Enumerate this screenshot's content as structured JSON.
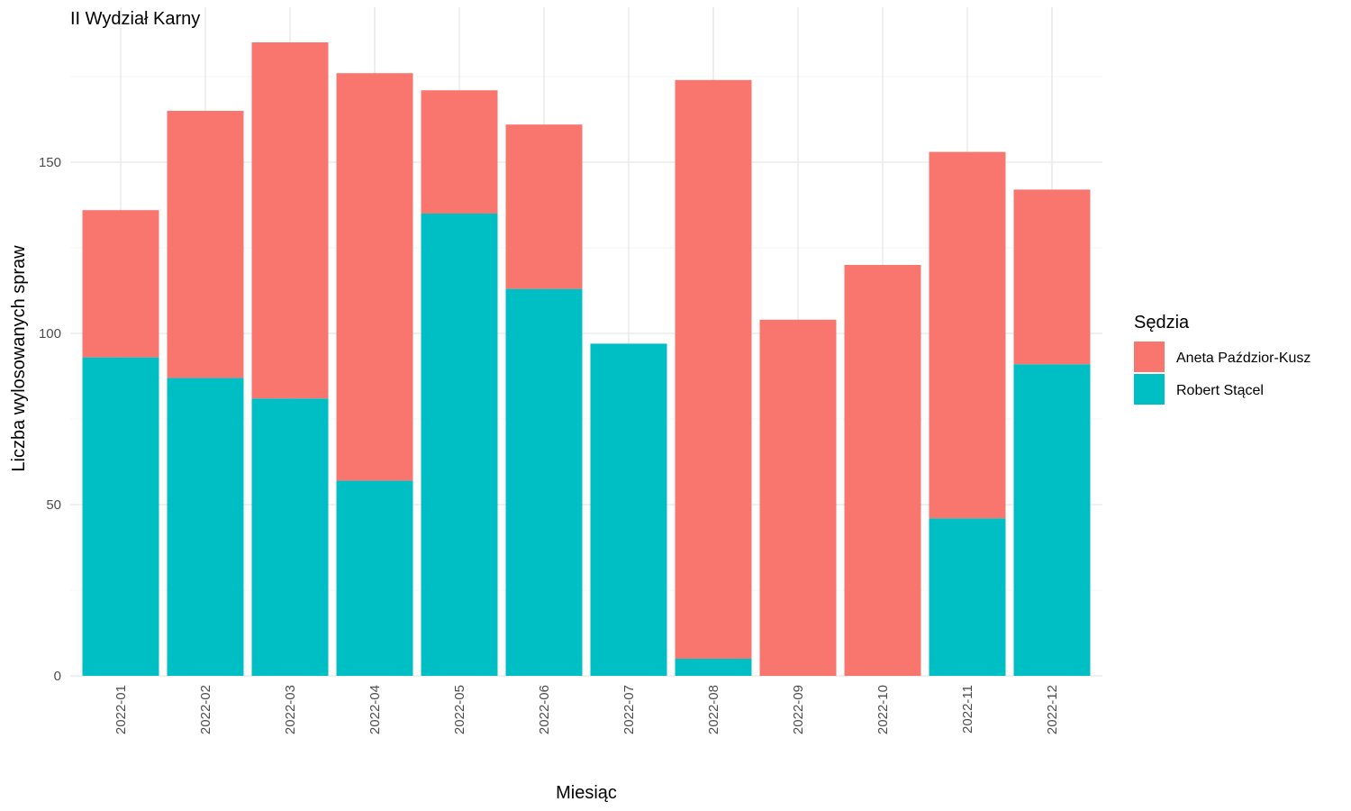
{
  "chart_data": {
    "type": "bar",
    "stacked": true,
    "title": "II Wydział Karny",
    "xlabel": "Miesiąc",
    "ylabel": "Liczba wylosowanych spraw",
    "ylim": [
      0,
      190
    ],
    "yticks": [
      0,
      50,
      100,
      150
    ],
    "grid": true,
    "categories": [
      "2022-01",
      "2022-02",
      "2022-03",
      "2022-04",
      "2022-05",
      "2022-06",
      "2022-07",
      "2022-08",
      "2022-09",
      "2022-10",
      "2022-11",
      "2022-12"
    ],
    "series": [
      {
        "name": "Robert Stącel",
        "color": "#00BFC4",
        "values": [
          93,
          87,
          81,
          57,
          135,
          113,
          97,
          5,
          0,
          0,
          46,
          91
        ]
      },
      {
        "name": "Aneta Paździor-Kusz",
        "color": "#F8766D",
        "values": [
          43,
          78,
          104,
          119,
          36,
          48,
          0,
          169,
          104,
          120,
          107,
          51
        ]
      }
    ],
    "legend": {
      "title": "Sędzia",
      "placement": "right",
      "entries": [
        "Aneta Paździor-Kusz",
        "Robert Stącel"
      ]
    }
  }
}
